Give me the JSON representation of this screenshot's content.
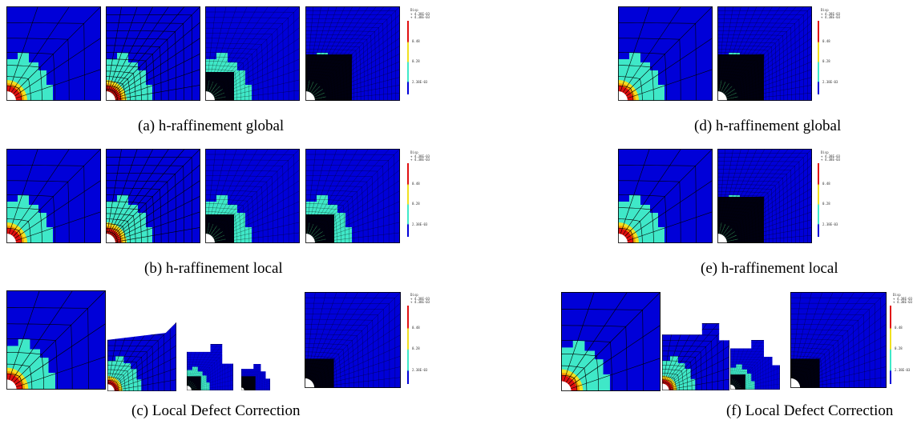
{
  "captions": {
    "a": "(a) h-raffinement global",
    "b": "(b) h-raffinement local",
    "c": "(c) Local Defect Correction",
    "d": "(d) h-raffinement global",
    "e": "(e) h-raffinement local",
    "f": "(f) Local Defect Correction"
  },
  "colorbar": {
    "title": "Disp",
    "max_labels": [
      "+ 4.38E-03",
      "+ 4.38E-03"
    ],
    "ticks": [
      "0.48",
      "0.28",
      "2.38E-03"
    ]
  },
  "colors": {
    "background_field": "#0000d8",
    "mesh_line": "#000000",
    "cyan": "#3fe8c8",
    "yellow": "#f0e020",
    "orange": "#ff9a00",
    "red": "#e01010",
    "green": "#2e8b57"
  }
}
